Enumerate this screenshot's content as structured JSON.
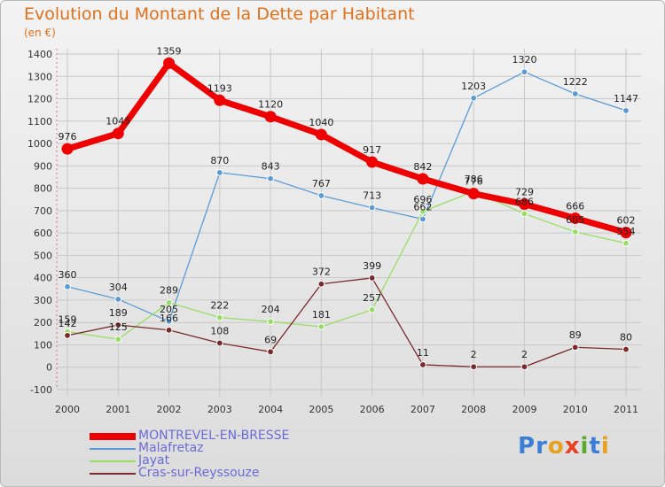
{
  "title": "Evolution du Montant de la Dette par Habitant",
  "subtitle": "(en €)",
  "logo": [
    "P",
    "r",
    "o",
    "x",
    "i",
    "t",
    "i"
  ],
  "logo_colors": [
    "#3a7fd5",
    "#3a7fd5",
    "#e8a020",
    "#e84020",
    "#5aaa30",
    "#3a7fd5",
    "#e8a020"
  ],
  "chart_data": {
    "type": "line",
    "title": "Evolution du Montant de la Dette par Habitant",
    "xlabel": "",
    "ylabel": "(en €)",
    "x": [
      "2000",
      "2001",
      "2002",
      "2003",
      "2004",
      "2005",
      "2006",
      "2007",
      "2008",
      "2009",
      "2010",
      "2011"
    ],
    "ylim": [
      -100,
      1400
    ],
    "yticks": [
      -100,
      0,
      100,
      200,
      300,
      400,
      500,
      600,
      700,
      800,
      900,
      1000,
      1100,
      1200,
      1300,
      1400
    ],
    "grid": true,
    "legend_position": "bottom-left",
    "series": [
      {
        "name": "MONTREVEL-EN-BRESSE",
        "color": "#ee0000",
        "width": 7,
        "values": [
          976,
          1045,
          1359,
          1193,
          1120,
          1040,
          917,
          842,
          776,
          729,
          666,
          602
        ],
        "labels": [
          "976",
          "1045",
          "1359",
          "1193",
          "1120",
          "1040",
          "917",
          "842",
          "776",
          "729",
          "666",
          "602"
        ]
      },
      {
        "name": "Malafretaz",
        "color": "#5b9bd5",
        "width": 1.3,
        "values": [
          360,
          304,
          205,
          870,
          843,
          767,
          713,
          662,
          1203,
          1320,
          1222,
          1147
        ],
        "labels": [
          "360",
          "304",
          "205",
          "870",
          "843",
          "767",
          "713",
          "662",
          "1203",
          "1320",
          "1222",
          "1147"
        ]
      },
      {
        "name": "Jayat",
        "color": "#99dd66",
        "width": 1.3,
        "values": [
          159,
          125,
          289,
          222,
          204,
          181,
          257,
          696,
          786,
          686,
          605,
          554
        ],
        "labels": [
          "159",
          "125",
          "289",
          "222",
          "204",
          "181",
          "257",
          "696",
          "786",
          "686",
          "605",
          "554"
        ]
      },
      {
        "name": "Cras-sur-Reyssouze",
        "color": "#7a2a2a",
        "width": 1.3,
        "values": [
          142,
          189,
          166,
          108,
          69,
          372,
          399,
          11,
          2,
          2,
          89,
          80
        ],
        "labels": [
          "142",
          "189",
          "166",
          "108",
          "69",
          "372",
          "399",
          "11",
          "2",
          "2",
          "89",
          "80"
        ]
      }
    ]
  }
}
